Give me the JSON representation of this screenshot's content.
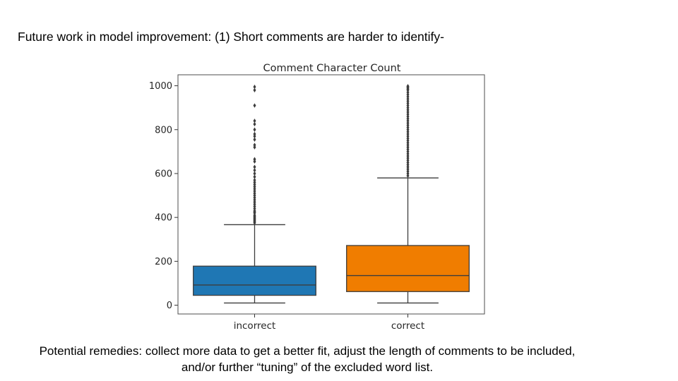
{
  "slide": {
    "heading": "Future work in model improvement: (1) Short comments are harder to identify-",
    "remedies_line1": "Potential remedies: collect more data to get a better fit, adjust the length of comments to be included,",
    "remedies_line2": "and/or further “tuning” of the excluded word list."
  },
  "chart_data": {
    "type": "box",
    "title": "Comment Character Count",
    "xlabel": "",
    "ylabel": "",
    "ylim": [
      -40,
      1050
    ],
    "yticks": [
      0,
      200,
      400,
      600,
      800,
      1000
    ],
    "categories": [
      "incorrect",
      "correct"
    ],
    "colors": [
      "#1f77b4",
      "#f07d00"
    ],
    "boxes": [
      {
        "category": "incorrect",
        "whisker_low": 10,
        "q1": 45,
        "median": 92,
        "q3": 178,
        "whisker_high": 367,
        "outliers": [
          375,
          380,
          385,
          390,
          395,
          400,
          405,
          410,
          420,
          425,
          430,
          440,
          450,
          460,
          470,
          480,
          490,
          500,
          510,
          520,
          530,
          540,
          550,
          560,
          570,
          585,
          600,
          615,
          630,
          655,
          665,
          720,
          730,
          755,
          770,
          780,
          800,
          825,
          840,
          910,
          980,
          995
        ]
      },
      {
        "category": "correct",
        "whisker_low": 10,
        "q1": 62,
        "median": 135,
        "q3": 272,
        "whisker_high": 580,
        "outliers": [
          590,
          600,
          610,
          620,
          630,
          640,
          650,
          660,
          670,
          680,
          690,
          700,
          710,
          720,
          730,
          740,
          750,
          760,
          770,
          780,
          790,
          800,
          810,
          820,
          830,
          840,
          850,
          860,
          870,
          880,
          890,
          900,
          910,
          920,
          930,
          940,
          950,
          960,
          970,
          980,
          985,
          990,
          995,
          998
        ]
      }
    ]
  }
}
